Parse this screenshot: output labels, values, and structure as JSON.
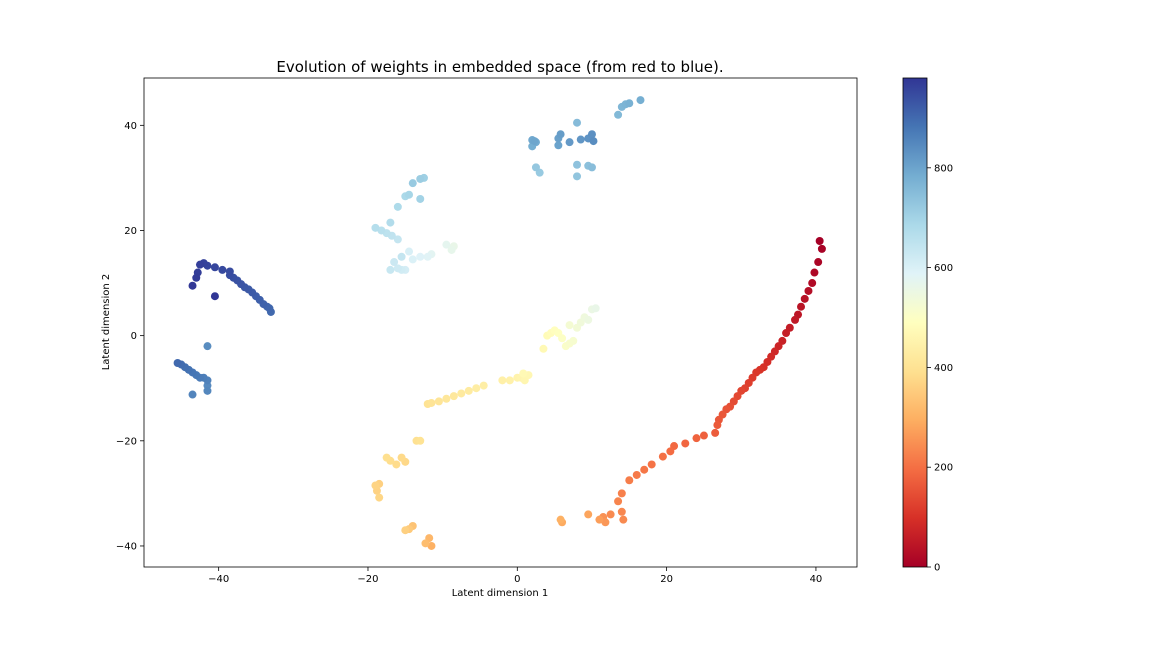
{
  "chart_data": {
    "type": "scatter",
    "title": "Evolution of weights in embedded space (from red to blue).",
    "xlabel": "Latent dimension 1",
    "ylabel": "Latent dimension 2",
    "xlim": [
      -50,
      45.5
    ],
    "ylim": [
      -44,
      49
    ],
    "xticks": [
      -40,
      -20,
      0,
      20,
      40
    ],
    "yticks": [
      -40,
      -20,
      0,
      20,
      40
    ],
    "colormap": "RdYlBu",
    "colorbar": {
      "min": 0,
      "max": 980,
      "ticks": [
        0,
        200,
        400,
        600,
        800
      ]
    },
    "grid": false,
    "segments": [
      {
        "c_start": 0,
        "c_end": 160,
        "points": [
          [
            40.5,
            18
          ],
          [
            40.8,
            16.5
          ],
          [
            40.3,
            14
          ],
          [
            39.8,
            12
          ],
          [
            39.5,
            10
          ],
          [
            39,
            8.5
          ],
          [
            38.5,
            7
          ],
          [
            38,
            5.5
          ],
          [
            37.6,
            4
          ],
          [
            37.2,
            3
          ],
          [
            36.5,
            1.5
          ],
          [
            36,
            0.5
          ],
          [
            35.5,
            -1
          ],
          [
            35,
            -2
          ],
          [
            34.5,
            -3
          ],
          [
            34,
            -4
          ],
          [
            33.5,
            -5
          ],
          [
            33,
            -6
          ],
          [
            32.5,
            -6.5
          ],
          [
            32,
            -7
          ],
          [
            31.5,
            -8
          ],
          [
            31,
            -9
          ],
          [
            30.5,
            -10
          ],
          [
            30,
            -10.5
          ],
          [
            29.5,
            -11.5
          ],
          [
            29,
            -12.5
          ],
          [
            28.5,
            -13.5
          ],
          [
            28,
            -14
          ],
          [
            27.5,
            -15
          ]
        ]
      },
      {
        "c_start": 160,
        "c_end": 240,
        "points": [
          [
            27,
            -16
          ],
          [
            26.8,
            -17
          ],
          [
            26.5,
            -18.5
          ],
          [
            25,
            -19
          ],
          [
            24,
            -19.5
          ],
          [
            22.5,
            -20.5
          ],
          [
            21,
            -21
          ],
          [
            20.5,
            -22
          ],
          [
            19.5,
            -23
          ],
          [
            18,
            -24.5
          ],
          [
            17,
            -25.5
          ],
          [
            16,
            -26.5
          ],
          [
            15,
            -27.5
          ],
          [
            14,
            -30
          ],
          [
            13.5,
            -31.5
          ],
          [
            14,
            -33.5
          ],
          [
            14.2,
            -35
          ]
        ]
      },
      {
        "c_start": 240,
        "c_end": 300,
        "points": [
          [
            12.5,
            -34
          ],
          [
            11.5,
            -34.5
          ],
          [
            11.8,
            -35.5
          ],
          [
            11,
            -35
          ],
          [
            9.5,
            -34
          ],
          [
            6,
            -35.5
          ],
          [
            5.8,
            -35
          ]
        ]
      },
      {
        "c_start": 300,
        "c_end": 360,
        "points": [
          [
            -11.5,
            -40
          ],
          [
            -11.8,
            -38.5
          ],
          [
            -12.3,
            -39.5
          ],
          [
            -14,
            -36.2
          ],
          [
            -14.5,
            -36.8
          ],
          [
            -15,
            -37
          ]
        ]
      },
      {
        "c_start": 360,
        "c_end": 400,
        "points": [
          [
            -18.5,
            -28.2
          ],
          [
            -18.8,
            -29.5
          ],
          [
            -19,
            -28.5
          ],
          [
            -18.5,
            -30.8
          ],
          [
            -15,
            -24
          ],
          [
            -15.5,
            -23.2
          ],
          [
            -16.2,
            -24.5
          ],
          [
            -17,
            -23.8
          ],
          [
            -17.5,
            -23.2
          ],
          [
            -13.5,
            -20
          ],
          [
            -13,
            -20
          ]
        ]
      },
      {
        "c_start": 400,
        "c_end": 470,
        "points": [
          [
            -12,
            -13
          ],
          [
            -11.5,
            -12.8
          ],
          [
            -10.5,
            -12.5
          ],
          [
            -9.5,
            -12
          ],
          [
            -8.5,
            -11.5
          ],
          [
            -7.5,
            -11
          ],
          [
            -6.5,
            -10.5
          ],
          [
            -5.5,
            -10
          ],
          [
            -4.5,
            -9.5
          ],
          [
            -2,
            -8.5
          ],
          [
            -1,
            -8.5
          ],
          [
            0,
            -8
          ],
          [
            0.5,
            -8
          ],
          [
            1,
            -8.5
          ],
          [
            1.5,
            -7.5
          ],
          [
            0.8,
            -7.2
          ]
        ]
      },
      {
        "c_start": 470,
        "c_end": 560,
        "points": [
          [
            3.5,
            -2.5
          ],
          [
            4,
            0
          ],
          [
            4.5,
            0.5
          ],
          [
            5,
            1
          ],
          [
            5.5,
            0.5
          ],
          [
            6,
            -0.5
          ],
          [
            6.5,
            -2
          ],
          [
            7,
            -1.5
          ],
          [
            7.5,
            -1
          ],
          [
            7,
            2
          ],
          [
            8,
            1.5
          ],
          [
            8.5,
            2.5
          ],
          [
            9,
            3.5
          ],
          [
            9.5,
            3
          ],
          [
            10,
            5
          ],
          [
            10.5,
            5.2
          ]
        ]
      },
      {
        "c_start": 560,
        "c_end": 640,
        "points": [
          [
            -8.5,
            17
          ],
          [
            -8.8,
            16.3
          ],
          [
            -9.5,
            17.3
          ],
          [
            -11.5,
            15.5
          ],
          [
            -12,
            15
          ],
          [
            -13,
            15
          ],
          [
            -14,
            14.5
          ],
          [
            -14.5,
            16
          ],
          [
            -15,
            12.5
          ],
          [
            -15.5,
            12.5
          ],
          [
            -16,
            12.8
          ],
          [
            -16.5,
            14
          ],
          [
            -17,
            12.5
          ],
          [
            -15.5,
            15
          ]
        ]
      },
      {
        "c_start": 640,
        "c_end": 720,
        "points": [
          [
            -16,
            18.3
          ],
          [
            -16.8,
            19
          ],
          [
            -17.5,
            19.5
          ],
          [
            -18.2,
            20
          ],
          [
            -19,
            20.5
          ],
          [
            -17,
            21.5
          ],
          [
            -16,
            24.5
          ],
          [
            -15,
            26.5
          ],
          [
            -14.5,
            26.8
          ],
          [
            -13,
            26
          ],
          [
            -12.5,
            30
          ],
          [
            -13,
            29.8
          ],
          [
            -14,
            29
          ]
        ]
      },
      {
        "c_start": 720,
        "c_end": 780,
        "points": [
          [
            3,
            31
          ],
          [
            2.5,
            32
          ],
          [
            8,
            30.3
          ],
          [
            8,
            32.5
          ],
          [
            9.5,
            32.3
          ],
          [
            10,
            32
          ],
          [
            8,
            40.5
          ],
          [
            13.5,
            42
          ],
          [
            14,
            43.5
          ],
          [
            14.5,
            44
          ],
          [
            15,
            44.2
          ],
          [
            16.5,
            44.8
          ]
        ]
      },
      {
        "c_start": 780,
        "c_end": 840,
        "points": [
          [
            2,
            36
          ],
          [
            2.5,
            36.8
          ],
          [
            2,
            37.2
          ],
          [
            2.3,
            37
          ],
          [
            5.5,
            36.2
          ],
          [
            5.5,
            37.5
          ],
          [
            5.8,
            38.3
          ],
          [
            7,
            36.8
          ],
          [
            8.5,
            37.3
          ],
          [
            9.5,
            37.5
          ],
          [
            10,
            38.3
          ],
          [
            10.2,
            37
          ]
        ]
      },
      {
        "c_start": 840,
        "c_end": 900,
        "points": [
          [
            -41.5,
            -2
          ],
          [
            -41.5,
            -9.5
          ],
          [
            -41.5,
            -10.5
          ],
          [
            -43.5,
            -11.2
          ],
          [
            -41.5,
            -8.5
          ],
          [
            -42,
            -8
          ],
          [
            -42.5,
            -8
          ],
          [
            -43,
            -7.5
          ],
          [
            -43.5,
            -7
          ],
          [
            -44,
            -6.5
          ],
          [
            -44.5,
            -6
          ],
          [
            -45,
            -5.5
          ],
          [
            -45.5,
            -5.2
          ]
        ]
      },
      {
        "c_start": 900,
        "c_end": 980,
        "points": [
          [
            -33,
            4.5
          ],
          [
            -33.2,
            5.2
          ],
          [
            -33.5,
            5.5
          ],
          [
            -34,
            6
          ],
          [
            -34.5,
            6.8
          ],
          [
            -35,
            7.5
          ],
          [
            -35.5,
            8.2
          ],
          [
            -36,
            8.8
          ],
          [
            -36.5,
            9.2
          ],
          [
            -37,
            9.8
          ],
          [
            -37.5,
            10.5
          ],
          [
            -38,
            11
          ],
          [
            -38.5,
            11.5
          ],
          [
            -38.5,
            12.2
          ],
          [
            -39.5,
            12.5
          ],
          [
            -40.5,
            13
          ],
          [
            -41.5,
            13.3
          ],
          [
            -42,
            13.8
          ],
          [
            -42.5,
            13.5
          ],
          [
            -42.8,
            12
          ],
          [
            -43,
            11
          ],
          [
            -43.5,
            9.5
          ],
          [
            -40.5,
            7.5
          ]
        ]
      }
    ]
  }
}
